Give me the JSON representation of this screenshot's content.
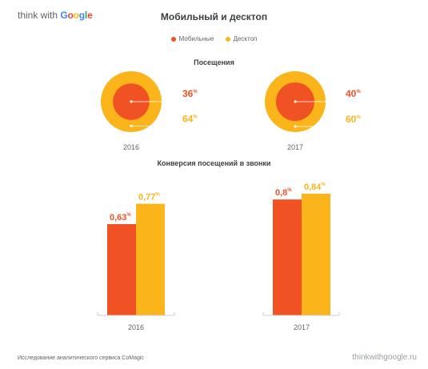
{
  "brand": {
    "prefix": "think with ",
    "google": "Google",
    "google_letters": [
      {
        "ch": "G",
        "color": "#4285F4"
      },
      {
        "ch": "o",
        "color": "#EA4335"
      },
      {
        "ch": "o",
        "color": "#FBBC05"
      },
      {
        "ch": "g",
        "color": "#4285F4"
      },
      {
        "ch": "l",
        "color": "#34A853"
      },
      {
        "ch": "e",
        "color": "#EA4335"
      }
    ]
  },
  "title": "Мобильный и десктоп",
  "legend": [
    {
      "label": "Мобильные",
      "color": "#F05223"
    },
    {
      "label": "Десктоп",
      "color": "#FBB41A"
    }
  ],
  "colors": {
    "mobile": "#F05223",
    "desktop": "#FBB41A",
    "axis": "#cccccc",
    "text": "#5f6368"
  },
  "chart_data": [
    {
      "type": "pie",
      "title": "Посещения",
      "groups": [
        {
          "year": "2016",
          "slices": [
            {
              "label": "Мобильные",
              "value": 36,
              "display": "36"
            },
            {
              "label": "Десктоп",
              "value": 64,
              "display": "64"
            }
          ]
        },
        {
          "year": "2017",
          "slices": [
            {
              "label": "Мобильные",
              "value": 40,
              "display": "40"
            },
            {
              "label": "Десктоп",
              "value": 60,
              "display": "60"
            }
          ]
        }
      ],
      "unit": "%"
    },
    {
      "type": "bar",
      "title": "Конверсия посещений в звонки",
      "categories": [
        "2016",
        "2017"
      ],
      "series": [
        {
          "name": "Мобильные",
          "values": [
            0.63,
            0.8
          ],
          "labels": [
            "0,63",
            "0,8"
          ]
        },
        {
          "name": "Десктоп",
          "values": [
            0.77,
            0.84
          ],
          "labels": [
            "0,77",
            "0,84"
          ]
        }
      ],
      "unit": "%"
    }
  ],
  "footer": {
    "source": "Исследование аналитического сервиса CoMagic",
    "site": "thinkwithgoogle.ru"
  }
}
